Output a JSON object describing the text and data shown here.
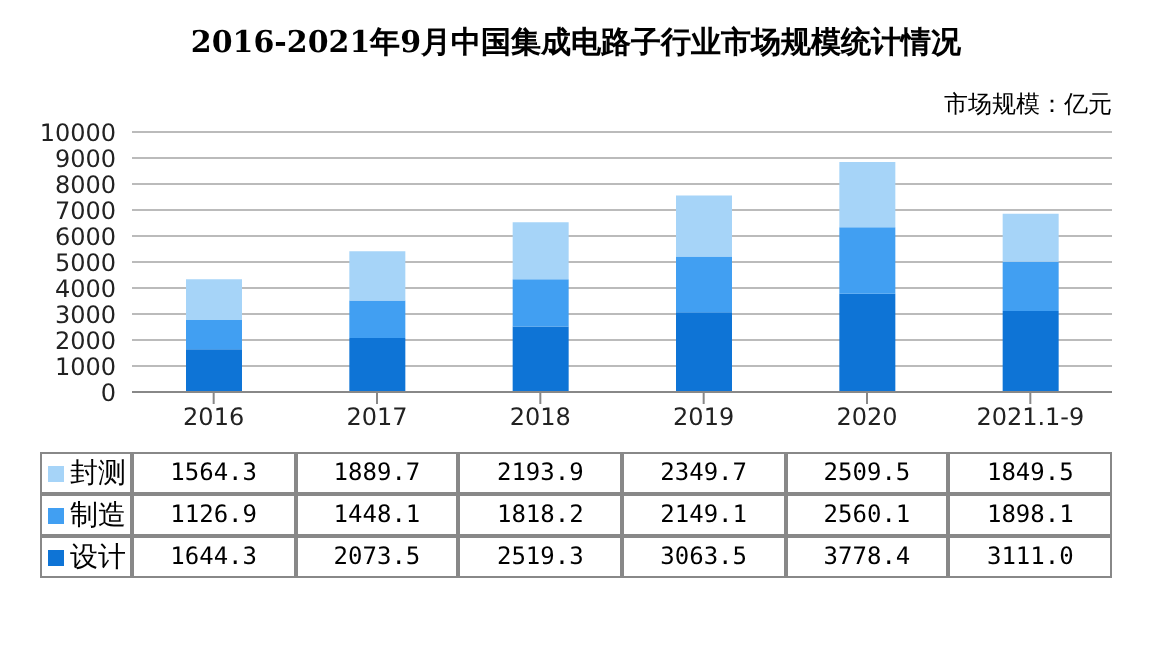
{
  "chart_data": {
    "type": "bar",
    "title": "2016-2021年9月中国集成电路子行业市场规模统计情况",
    "ylabel": "市场规模：亿元",
    "categories": [
      "2016",
      "2017",
      "2018",
      "2019",
      "2020",
      "2021.1-9"
    ],
    "stacked": true,
    "series": [
      {
        "name": "设计",
        "color": "#0e74d6",
        "values": [
          1644.3,
          2073.5,
          2519.3,
          3063.5,
          3778.4,
          3111.0
        ],
        "value_labels": [
          "1644.3",
          "2073.5",
          "2519.3",
          "3063.5",
          "3778.4",
          "3111.0"
        ]
      },
      {
        "name": "制造",
        "color": "#419ff2",
        "values": [
          1126.9,
          1448.1,
          1818.2,
          2149.1,
          2560.1,
          1898.1
        ],
        "value_labels": [
          "1126.9",
          "1448.1",
          "1818.2",
          "2149.1",
          "2560.1",
          "1898.1"
        ]
      },
      {
        "name": "封测",
        "color": "#a6d4f8",
        "values": [
          1564.3,
          1889.7,
          2193.9,
          2349.7,
          2509.5,
          1849.5
        ],
        "value_labels": [
          "1564.3",
          "1889.7",
          "2193.9",
          "2349.7",
          "2509.5",
          "1849.5"
        ]
      }
    ],
    "ylim": [
      0,
      10000
    ],
    "yticks": [
      0,
      1000,
      2000,
      3000,
      4000,
      5000,
      6000,
      7000,
      8000,
      9000,
      10000
    ],
    "grid": "y",
    "legend": "bottom left"
  }
}
